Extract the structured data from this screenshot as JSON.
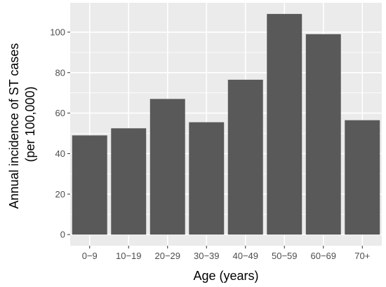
{
  "chart_data": {
    "type": "bar",
    "title": "",
    "xlabel": "Age (years)",
    "ylabel_lines": [
      "Annual incidence of ST cases",
      "(per 100,000)"
    ],
    "categories": [
      "0−9",
      "10−19",
      "20−29",
      "30−39",
      "40−49",
      "50−59",
      "60−69",
      "70+"
    ],
    "values": [
      49,
      52.5,
      67,
      55.5,
      76.5,
      109,
      99,
      56.5
    ],
    "yticks": [
      0,
      20,
      40,
      60,
      80,
      100
    ],
    "ylim": [
      -5.5,
      114.5
    ],
    "grid": true,
    "legend": "none",
    "colors": {
      "bar": "#595959",
      "panel": "#ebebeb",
      "grid_major": "#ffffff",
      "tick_text": "#4d4d4d",
      "tick_mark": "#333333"
    }
  }
}
